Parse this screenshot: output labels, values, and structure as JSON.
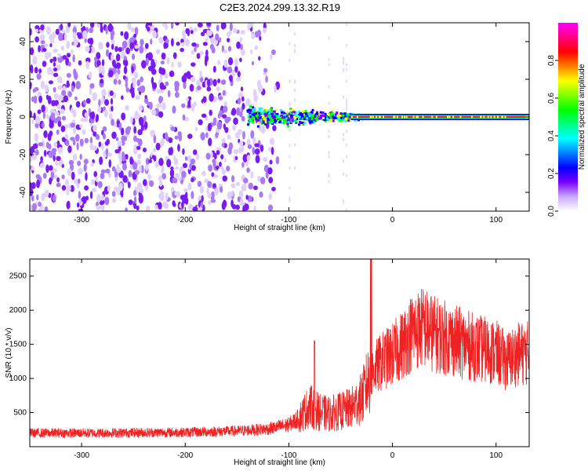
{
  "title": "C2E3.2024.299.13.32.R19",
  "chart_data": [
    {
      "type": "heatmap",
      "xlabel": "Height of straight line (km)",
      "ylabel": "Frequency (Hz)",
      "xlim": [
        -350,
        132
      ],
      "ylim": [
        -50,
        50
      ],
      "xticks": [
        -300,
        -200,
        -100,
        0,
        100
      ],
      "yticks": [
        -40,
        -20,
        0,
        20,
        40
      ],
      "colorbar": {
        "label": "Normalized spectral amplitude",
        "range": [
          0,
          1
        ],
        "ticks": [
          "0.0",
          "0.2",
          "0.4",
          "0.6",
          "0.8"
        ],
        "colors": [
          "#ffffff",
          "#d9c8ff",
          "#7a00ff",
          "#0000ff",
          "#00ffff",
          "#00ff00",
          "#ffff00",
          "#ff0000",
          "#ff00ff"
        ]
      },
      "features": {
        "noise_region_x": [
          -350,
          -110
        ],
        "carrier_frequency_hz": 0,
        "carrier_start_x": -40,
        "turbulent_band_x": [
          -140,
          -40
        ]
      }
    },
    {
      "type": "line",
      "xlabel": "Height of straight line (km)",
      "ylabel": "SNR (10 * v/v)",
      "xlim": [
        -350,
        132
      ],
      "ylim": [
        0,
        2750
      ],
      "xticks": [
        -300,
        -200,
        -100,
        0,
        100
      ],
      "yticks": [
        500,
        1000,
        1500,
        2000,
        2500
      ],
      "series": [
        {
          "color": "#ee2222",
          "profile_x": [
            -350,
            -300,
            -200,
            -150,
            -120,
            -100,
            -90,
            -80,
            -70,
            -60,
            -50,
            -40,
            -30,
            -25,
            -20,
            -10,
            0,
            10,
            20,
            30,
            40,
            60,
            80,
            100,
            110,
            120,
            132
          ],
          "profile_y": [
            200,
            200,
            210,
            230,
            260,
            320,
            420,
            600,
            500,
            480,
            520,
            560,
            700,
            900,
            1100,
            1250,
            1350,
            1500,
            1700,
            1750,
            1650,
            1550,
            1450,
            1380,
            1250,
            1350,
            1380
          ]
        }
      ]
    }
  ]
}
